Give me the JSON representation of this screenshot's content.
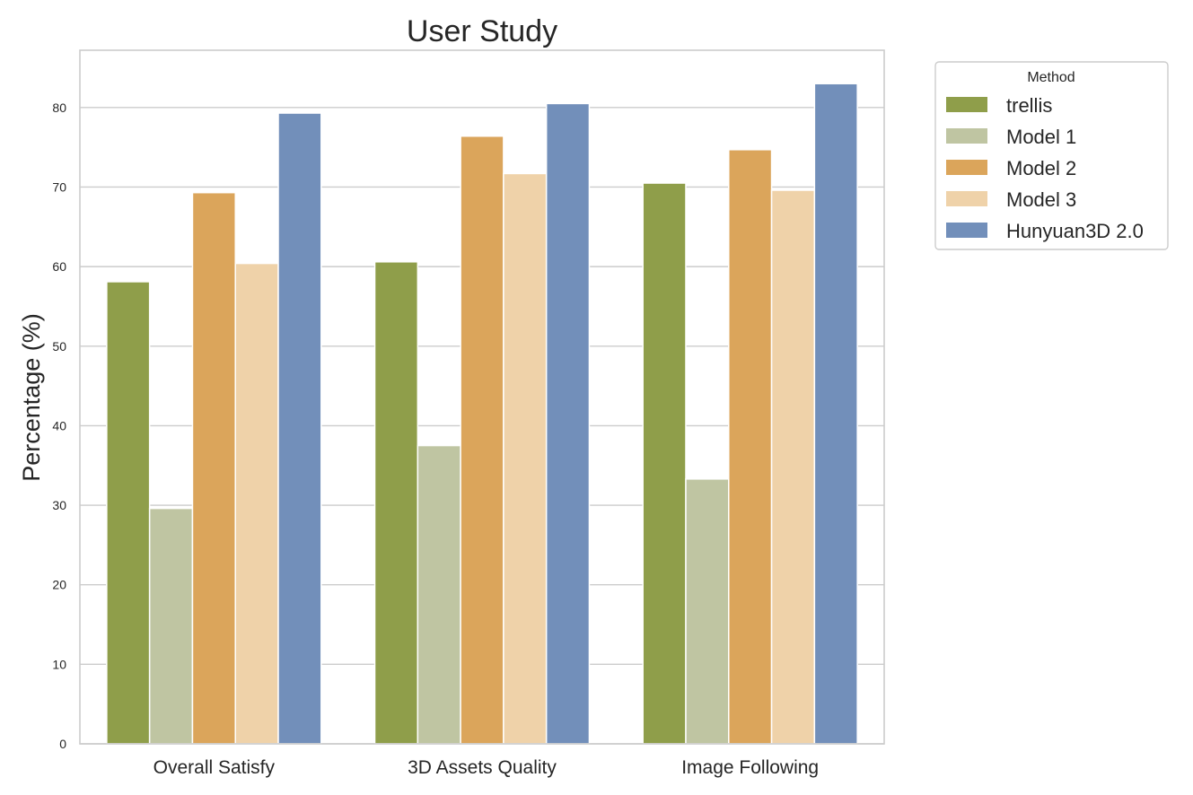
{
  "chart_data": {
    "type": "bar",
    "title": "User Study",
    "xlabel": "",
    "ylabel": "Percentage (%)",
    "ylim": [
      0,
      87.2
    ],
    "yticks": [
      0,
      10,
      20,
      30,
      40,
      50,
      60,
      70,
      80
    ],
    "grid": "horizontal",
    "categories": [
      "Overall Satisfy",
      "3D Assets Quality",
      "Image Following"
    ],
    "legend": {
      "title": "Method",
      "placement": "outside top-right"
    },
    "series": [
      {
        "name": "trellis",
        "color": "#8f9e4a",
        "values": [
          58.1,
          60.6,
          70.5
        ]
      },
      {
        "name": "Model 1",
        "color": "#bfc5a2",
        "values": [
          29.6,
          37.5,
          33.3
        ]
      },
      {
        "name": "Model 2",
        "color": "#dba55b",
        "values": [
          69.3,
          76.4,
          74.7
        ]
      },
      {
        "name": "Model 3",
        "color": "#efd2a9",
        "values": [
          60.4,
          71.7,
          69.6
        ]
      },
      {
        "name": "Hunyuan3D 2.0",
        "color": "#728fba",
        "values": [
          79.3,
          80.5,
          83.0
        ]
      }
    ]
  }
}
